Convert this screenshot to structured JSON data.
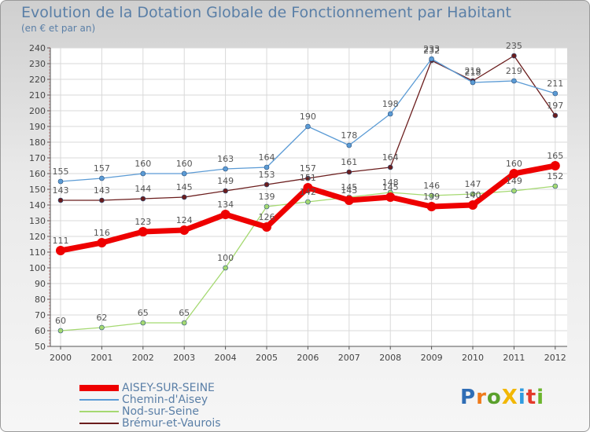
{
  "title": "Evolution de la Dotation Globale de Fonctionnement par Habitant",
  "subtitle": "(en € et par an)",
  "logo": {
    "text": "ProXiti",
    "letters": [
      "P",
      "r",
      "o",
      "X",
      "i",
      "t",
      "i"
    ],
    "colors": [
      "#2f6db5",
      "#ef7a1a",
      "#5aa02c",
      "#f2b705",
      "#2f9be0",
      "#e33a2b",
      "#6bb52d"
    ]
  },
  "chart_data": {
    "type": "line",
    "x": [
      2000,
      2001,
      2002,
      2003,
      2004,
      2005,
      2006,
      2007,
      2008,
      2009,
      2010,
      2011,
      2012
    ],
    "ylim": [
      50,
      240
    ],
    "yticks": [
      50,
      60,
      70,
      80,
      90,
      100,
      110,
      120,
      130,
      140,
      150,
      160,
      170,
      180,
      190,
      200,
      210,
      220,
      230,
      240
    ],
    "grid": true,
    "legend_position": "bottom-left",
    "series": [
      {
        "name": "AISEY-SUR-SEINE",
        "color": "#ee0000",
        "values": [
          111,
          116,
          123,
          124,
          134,
          126,
          151,
          143,
          145,
          139,
          140,
          160,
          165
        ]
      },
      {
        "name": "Chemin-d'Aisey",
        "color": "#5b9bd5",
        "values": [
          155,
          157,
          160,
          160,
          163,
          164,
          190,
          178,
          198,
          233,
          218,
          219,
          211
        ]
      },
      {
        "name": "Nod-sur-Seine",
        "color": "#a5d971",
        "values": [
          60,
          62,
          65,
          65,
          100,
          139,
          142,
          145,
          148,
          146,
          147,
          149,
          152
        ]
      },
      {
        "name": "Brémur-et-Vaurois",
        "color": "#6b1d1d",
        "values": [
          143,
          143,
          144,
          145,
          149,
          153,
          157,
          161,
          164,
          232,
          219,
          235,
          197
        ]
      }
    ]
  }
}
